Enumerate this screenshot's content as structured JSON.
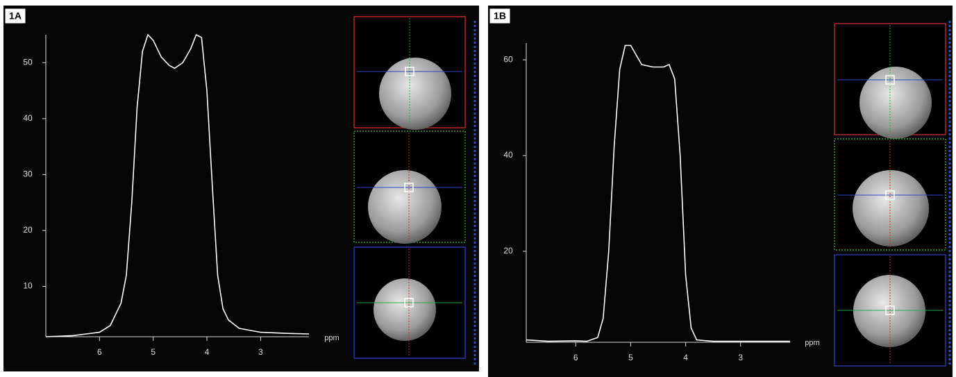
{
  "chart_data": [
    {
      "type": "line",
      "panel_label": "1A",
      "xlabel": "ppm",
      "color": "#ffffff",
      "xlim": [
        7,
        2.1
      ],
      "xticks": [
        6,
        5,
        4,
        3
      ],
      "ylim": [
        1,
        55
      ],
      "yticks": [
        10,
        20,
        30,
        40,
        50
      ],
      "x": [
        7,
        6.5,
        6,
        5.8,
        5.6,
        5.5,
        5.4,
        5.3,
        5.2,
        5.1,
        5.0,
        4.85,
        4.7,
        4.6,
        4.45,
        4.3,
        4.2,
        4.1,
        4.0,
        3.9,
        3.8,
        3.7,
        3.6,
        3.4,
        3.0,
        2.5,
        2.1
      ],
      "values": [
        1,
        1.2,
        1.8,
        3,
        7,
        12,
        25,
        42,
        52,
        55,
        54,
        51,
        49.5,
        49,
        50,
        52.5,
        55,
        54.5,
        45,
        28,
        12,
        6,
        4,
        2.5,
        1.8,
        1.6,
        1.5
      ]
    },
    {
      "type": "line",
      "panel_label": "1B",
      "xlabel": "ppm",
      "color": "#ffffff",
      "xlim": [
        6.9,
        2.1
      ],
      "xticks": [
        6,
        5,
        4,
        3
      ],
      "ylim": [
        1,
        63.5
      ],
      "yticks": [
        20,
        40,
        60
      ],
      "x": [
        6.9,
        6.5,
        6.0,
        5.8,
        5.6,
        5.5,
        5.4,
        5.3,
        5.2,
        5.1,
        5.0,
        4.9,
        4.8,
        4.6,
        4.4,
        4.3,
        4.2,
        4.1,
        4.0,
        3.9,
        3.8,
        3.5,
        2.1
      ],
      "values": [
        1.5,
        1.2,
        1.3,
        1.2,
        2,
        6,
        20,
        42,
        58,
        63,
        63,
        61,
        59,
        58.5,
        58.5,
        59,
        56,
        40,
        15,
        4,
        1.5,
        1.2,
        1.2
      ]
    }
  ]
}
